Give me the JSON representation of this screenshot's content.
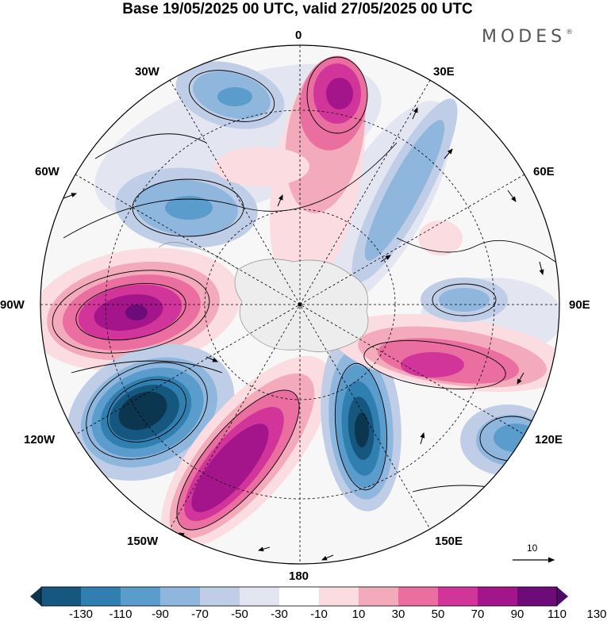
{
  "header": {
    "title": "Base 19/05/2025 00 UTC, valid 27/05/2025 00 UTC",
    "brand": "MODES",
    "brand_mark": "®"
  },
  "map": {
    "projection": "south-polar-stereographic",
    "longitude_labels": {
      "top": "0",
      "top_right": "30E",
      "right_upper": "60E",
      "right": "90E",
      "right_lower": "120E",
      "bottom_right": "150E",
      "bottom": "180",
      "bottom_left": "150W",
      "left_lower": "120W",
      "left": "90W",
      "left_upper": "60W",
      "top_left": "30W"
    },
    "anomaly_centers": [
      {
        "sign": "positive",
        "lon": "90W",
        "level": 110
      },
      {
        "sign": "negative",
        "lon": "120W",
        "level": -130
      },
      {
        "sign": "positive",
        "lon": "150W",
        "level": 110
      },
      {
        "sign": "negative",
        "lon": "165E",
        "level": -130
      },
      {
        "sign": "positive",
        "lon": "110E",
        "level": 90
      },
      {
        "sign": "negative",
        "lon": "125E",
        "level": -70
      },
      {
        "sign": "positive",
        "lon": "15E",
        "level": 110
      },
      {
        "sign": "negative",
        "lon": "20W",
        "level": -70
      },
      {
        "sign": "negative",
        "lon": "55W",
        "level": -70
      },
      {
        "sign": "negative",
        "lon": "90E",
        "level": -50
      },
      {
        "sign": "negative",
        "lon": "45E",
        "level": -50
      }
    ]
  },
  "vector_reference": {
    "label": "10"
  },
  "colorbar": {
    "ticks": [
      "-130",
      "-110",
      "-90",
      "-70",
      "-50",
      "-30",
      "-10",
      "10",
      "30",
      "50",
      "70",
      "90",
      "110",
      "130"
    ],
    "colors": [
      "#0c3550",
      "#15577e",
      "#2f7fb0",
      "#5a9ccc",
      "#8fb6dc",
      "#bfcde6",
      "#e3e5f1",
      "#ffffff",
      "#fbdde1",
      "#f3aabb",
      "#ea6ea0",
      "#d2359a",
      "#a4158b",
      "#6d0c79",
      "#4c0a66"
    ]
  }
}
